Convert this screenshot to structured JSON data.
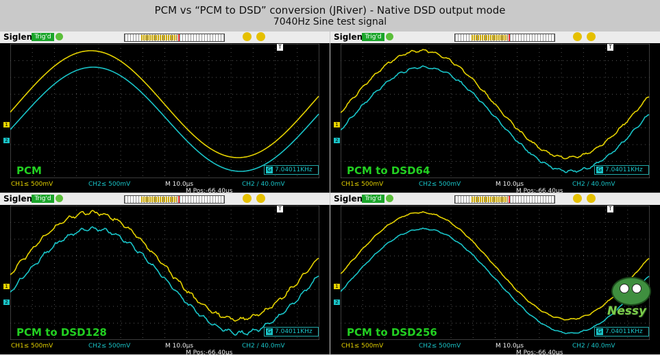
{
  "title": {
    "line1": "PCM vs “PCM to DSD” conversion (JRiver) - Native DSD output mode",
    "line2": "7040Hz Sine test signal"
  },
  "scope": {
    "brand": "Siglent",
    "status": "Trig'd",
    "trigger_marker": "T",
    "ch1_marker": "1",
    "ch2_marker": "2",
    "ch1_scale": "CH1≤ 500mV",
    "ch2_scale": "CH2≤ 500mV",
    "timebase": "M 10.0µs",
    "trigger_setting": "CH2 ∕ 40.0mV",
    "mpos": "M Pos:-66.40µs",
    "freq_icon": "G",
    "frequency": "7.04011KHz"
  },
  "panels": [
    {
      "label": "PCM"
    },
    {
      "label": "PCM to DSD64"
    },
    {
      "label": "PCM to DSD128"
    },
    {
      "label": "PCM to DSD256"
    }
  ],
  "logo": {
    "text": "Nessy"
  },
  "colors": {
    "ch1": "#e5d200",
    "ch2": "#19c4c8",
    "label": "#22d021"
  }
}
